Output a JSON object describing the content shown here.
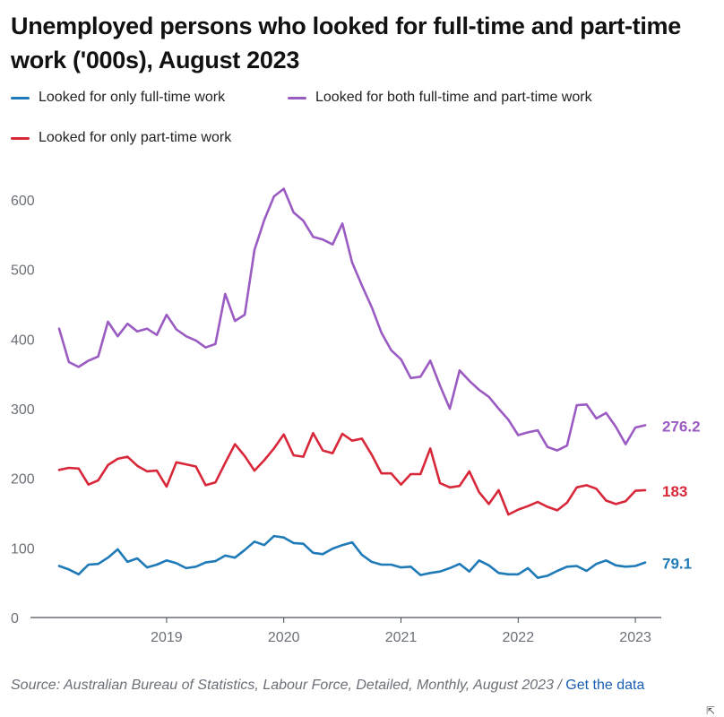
{
  "title": "Unemployed persons who looked for full-time and part-time work ('000s), August 2023",
  "source": {
    "text": "Source: Australian Bureau of Statistics, Labour Force, Detailed, Monthly, August 2023 / ",
    "link_label": "Get the data"
  },
  "colors": {
    "full_time": "#1f7ab8",
    "both": "#9a5bc2",
    "part_time": "#d9273a",
    "axis": "#4a4f57",
    "grid_text": "#6b7078",
    "source_link": "#1a5fb4"
  },
  "chart_data": {
    "type": "line",
    "title": "Unemployed persons who looked for full-time and part-time work ('000s), August 2023",
    "xlabel": "",
    "ylabel": "",
    "ylim": [
      0,
      620
    ],
    "xlim": [
      "2018-08",
      "2023-08"
    ],
    "yticks": [
      0,
      100,
      200,
      300,
      400,
      500,
      600
    ],
    "xticks": [
      "2019",
      "2020",
      "2021",
      "2022",
      "2023"
    ],
    "grid": false,
    "legend_position": "top",
    "x": [
      "2018-08",
      "2018-09",
      "2018-10",
      "2018-11",
      "2018-12",
      "2019-01",
      "2019-02",
      "2019-03",
      "2019-04",
      "2019-05",
      "2019-06",
      "2019-07",
      "2019-08",
      "2019-09",
      "2019-10",
      "2019-11",
      "2019-12",
      "2020-01",
      "2020-02",
      "2020-03",
      "2020-04",
      "2020-05",
      "2020-06",
      "2020-07",
      "2020-08",
      "2020-09",
      "2020-10",
      "2020-11",
      "2020-12",
      "2021-01",
      "2021-02",
      "2021-03",
      "2021-04",
      "2021-05",
      "2021-06",
      "2021-07",
      "2021-08",
      "2021-09",
      "2021-10",
      "2021-11",
      "2021-12",
      "2022-01",
      "2022-02",
      "2022-03",
      "2022-04",
      "2022-05",
      "2022-06",
      "2022-07",
      "2022-08",
      "2022-09",
      "2022-10",
      "2022-11",
      "2022-12",
      "2023-01",
      "2023-02",
      "2023-03",
      "2023-04",
      "2023-05",
      "2023-06",
      "2023-07",
      "2023-08"
    ],
    "series": [
      {
        "name": "Looked for only full-time work",
        "color_key": "full_time",
        "end_label": "79.1",
        "values": [
          74,
          69,
          62,
          76,
          77,
          86,
          98,
          80,
          85,
          72,
          76,
          82,
          78,
          71,
          73,
          79,
          81,
          89,
          86,
          97,
          109,
          104,
          117,
          115,
          107,
          106,
          93,
          91,
          99,
          104,
          108,
          90,
          80,
          76,
          76,
          72,
          73,
          61,
          64,
          66,
          71,
          77,
          66,
          82,
          75,
          64,
          62,
          62,
          71,
          57,
          60,
          67,
          73,
          74,
          67,
          77,
          82,
          75,
          73,
          74,
          79.1
        ]
      },
      {
        "name": "Looked for both full-time and part-time work",
        "color_key": "both",
        "end_label": "276.2",
        "values": [
          415,
          367,
          360,
          369,
          375,
          425,
          404,
          422,
          411,
          415,
          406,
          435,
          414,
          404,
          398,
          388,
          393,
          465,
          426,
          435,
          528,
          571,
          605,
          616,
          582,
          570,
          547,
          543,
          536,
          566,
          510,
          477,
          446,
          409,
          384,
          371,
          344,
          346,
          369,
          333,
          300,
          355,
          340,
          327,
          317,
          300,
          284,
          262,
          266,
          269,
          245,
          240,
          247,
          305,
          306,
          286,
          294,
          274,
          249,
          273,
          276.2
        ]
      },
      {
        "name": "Looked for only part-time work",
        "color_key": "part_time",
        "end_label": "183",
        "values": [
          212,
          215,
          214,
          191,
          197,
          219,
          228,
          231,
          218,
          210,
          211,
          188,
          223,
          220,
          217,
          190,
          194,
          222,
          249,
          232,
          211,
          226,
          243,
          263,
          233,
          231,
          265,
          240,
          236,
          264,
          254,
          257,
          234,
          207,
          207,
          191,
          206,
          206,
          243,
          193,
          187,
          189,
          210,
          180,
          163,
          183,
          148,
          155,
          160,
          166,
          159,
          154,
          165,
          187,
          190,
          185,
          168,
          163,
          167,
          182,
          183
        ]
      }
    ]
  }
}
